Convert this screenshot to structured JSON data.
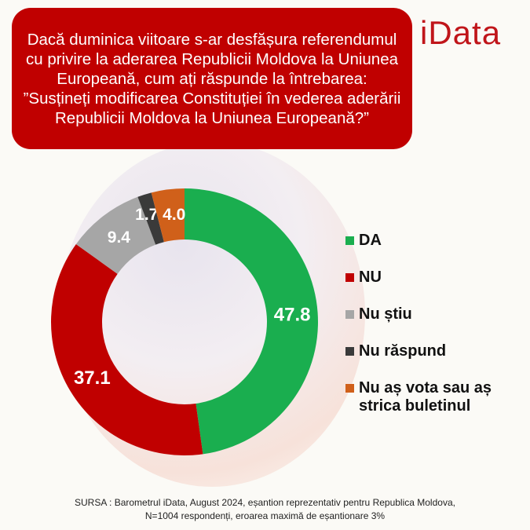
{
  "title": "Dacă duminica viitoare s-ar desfășura referendumul cu privire la aderarea Republicii Moldova la Uniunea Europeană, cum ați răspunde la întrebarea: ”Susțineți modificarea Constituției în vederea aderării Republicii Moldova la Uniunea Europeană?”",
  "logo": "iData",
  "chart_data": {
    "type": "pie",
    "donut": true,
    "categories": [
      "DA",
      "NU",
      "Nu știu",
      "Nu răspund",
      "Nu aș vota sau aș strica buletinul"
    ],
    "values": [
      47.8,
      37.1,
      9.4,
      1.7,
      4.0
    ],
    "labels": [
      "47.8",
      "37.1",
      "9.4",
      "1.7",
      "4.0"
    ],
    "colors": [
      "#1aae4f",
      "#c00000",
      "#a6a6a6",
      "#3a3a3a",
      "#d0601a"
    ],
    "legend_position": "right"
  },
  "source": {
    "line1": "SURSA : Barometrul iData, August 2024, eșantion reprezentativ pentru Republica Moldova,",
    "line2": "N=1004 respondenți, eroarea maximă de eșantionare 3%"
  }
}
